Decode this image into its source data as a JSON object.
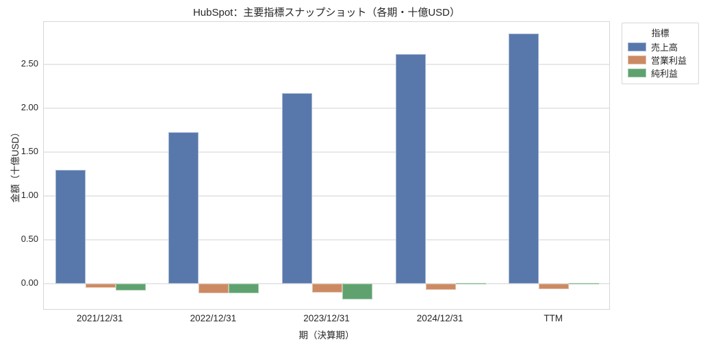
{
  "chart_data": {
    "type": "bar",
    "title": "HubSpot：主要指標スナップショット（各期・十億USD）",
    "xlabel": "期（決算期）",
    "ylabel": "金額（十億USD）",
    "legend_title": "指標",
    "legend_position": "outside upper right",
    "grid": true,
    "background": "#ffffff",
    "categories": [
      "2021/12/31",
      "2022/12/31",
      "2023/12/31",
      "2024/12/31",
      "TTM"
    ],
    "series": [
      {
        "name": "売上高",
        "color": "#5878AB",
        "values": [
          1.3,
          1.73,
          2.17,
          2.62,
          2.85
        ]
      },
      {
        "name": "営業利益",
        "color": "#CC8A63",
        "values": [
          -0.05,
          -0.11,
          -0.1,
          -0.07,
          -0.06
        ]
      },
      {
        "name": "純利益",
        "color": "#5FA26F",
        "values": [
          -0.08,
          -0.11,
          -0.18,
          0.005,
          0.01
        ]
      }
    ],
    "yticks": [
      0.0,
      0.5,
      1.0,
      1.5,
      2.0,
      2.5
    ],
    "ytick_labels": [
      "0.00",
      "0.50",
      "1.00",
      "1.50",
      "2.00",
      "2.50"
    ],
    "ylim": [
      -0.305,
      2.985
    ]
  }
}
